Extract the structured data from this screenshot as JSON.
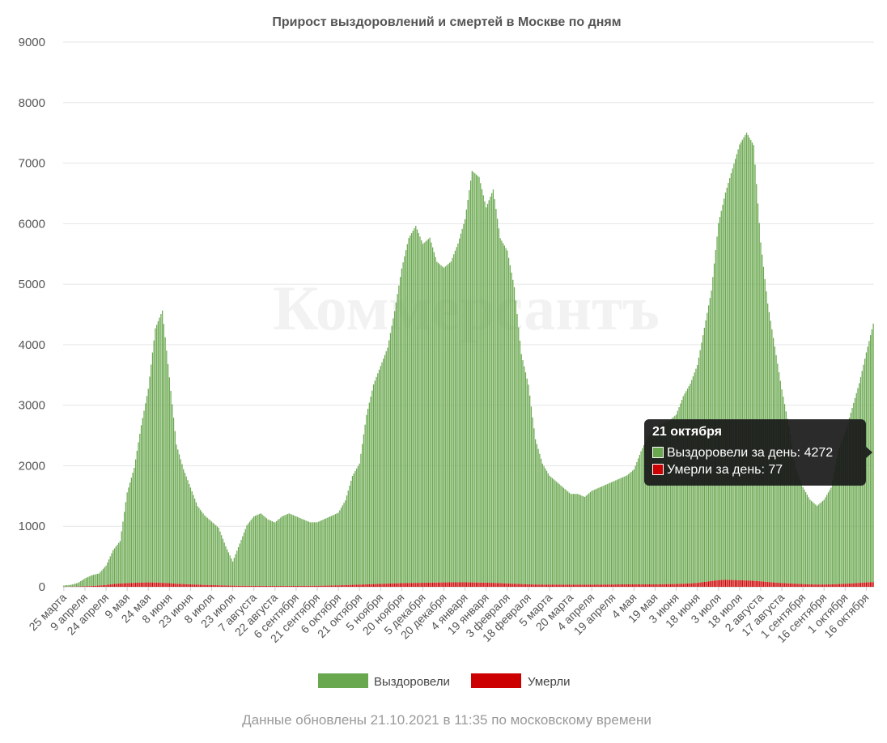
{
  "watermark": "Коммерсантъ",
  "footer": "Данные обновлены 21.10.2021 в 11:35 по московскому времени",
  "tooltip": {
    "title": "21 октября",
    "recovered_label": "Выздоровели за день: 4272",
    "deaths_label": "Умерли за день: 77"
  },
  "colors": {
    "recovered": "#6aa84f",
    "deaths": "#cc0000",
    "grid": "#e6e6e6"
  },
  "chart_data": {
    "type": "bar",
    "stacked": true,
    "title": "Прирост выздоровлений и смертей в Москве по дням",
    "ylim": [
      0,
      9000
    ],
    "yticks": [
      0,
      1000,
      2000,
      3000,
      4000,
      5000,
      6000,
      7000,
      8000,
      9000
    ],
    "grid": true,
    "legend_position": "bottom",
    "x_start": "2020-03-25",
    "x_end": "2021-10-21",
    "x_tick_labels": [
      "25 марта",
      "9 апреля",
      "24 апреля",
      "9 мая",
      "24 мая",
      "8 июня",
      "23 июня",
      "8 июля",
      "23 июля",
      "7 августа",
      "22 августа",
      "6 сентября",
      "21 сентября",
      "6 октября",
      "21 октября",
      "5 ноября",
      "20 ноября",
      "5 декабря",
      "20 декабря",
      "4 января",
      "19 января",
      "3 февраля",
      "18 февраля",
      "5 марта",
      "20 марта",
      "4 апреля",
      "19 апреля",
      "4 мая",
      "19 мая",
      "3 июня",
      "18 июня",
      "3 июля",
      "18 июля",
      "2 августа",
      "17 августа",
      "1 сентября",
      "16 сентября",
      "1 октября",
      "16 октября"
    ],
    "series": [
      {
        "name": "Выздоровели",
        "color": "#6aa84f",
        "description": "daily recovered, approximate values every 5 days aligned to tick dates",
        "x": [
          "2020-03-25",
          "2020-03-30",
          "2020-04-04",
          "2020-04-09",
          "2020-04-14",
          "2020-04-19",
          "2020-04-24",
          "2020-04-29",
          "2020-05-04",
          "2020-05-09",
          "2020-05-14",
          "2020-05-19",
          "2020-05-24",
          "2020-05-29",
          "2020-06-03",
          "2020-06-08",
          "2020-06-13",
          "2020-06-18",
          "2020-06-23",
          "2020-06-28",
          "2020-07-03",
          "2020-07-08",
          "2020-07-13",
          "2020-07-18",
          "2020-07-23",
          "2020-07-28",
          "2020-08-02",
          "2020-08-07",
          "2020-08-12",
          "2020-08-17",
          "2020-08-22",
          "2020-08-27",
          "2020-09-01",
          "2020-09-06",
          "2020-09-11",
          "2020-09-16",
          "2020-09-21",
          "2020-09-26",
          "2020-10-01",
          "2020-10-06",
          "2020-10-11",
          "2020-10-16",
          "2020-10-21",
          "2020-10-26",
          "2020-10-31",
          "2020-11-05",
          "2020-11-10",
          "2020-11-15",
          "2020-11-20",
          "2020-11-25",
          "2020-11-30",
          "2020-12-05",
          "2020-12-10",
          "2020-12-15",
          "2020-12-20",
          "2020-12-25",
          "2020-12-30",
          "2021-01-04",
          "2021-01-09",
          "2021-01-14",
          "2021-01-19",
          "2021-01-24",
          "2021-01-29",
          "2021-02-03",
          "2021-02-08",
          "2021-02-13",
          "2021-02-18",
          "2021-02-23",
          "2021-02-28",
          "2021-03-05",
          "2021-03-10",
          "2021-03-15",
          "2021-03-20",
          "2021-03-25",
          "2021-03-30",
          "2021-04-04",
          "2021-04-09",
          "2021-04-14",
          "2021-04-19",
          "2021-04-24",
          "2021-04-29",
          "2021-05-04",
          "2021-05-09",
          "2021-05-14",
          "2021-05-19",
          "2021-05-24",
          "2021-05-29",
          "2021-06-03",
          "2021-06-08",
          "2021-06-13",
          "2021-06-18",
          "2021-06-23",
          "2021-06-28",
          "2021-07-03",
          "2021-07-08",
          "2021-07-13",
          "2021-07-18",
          "2021-07-23",
          "2021-07-28",
          "2021-08-02",
          "2021-08-07",
          "2021-08-12",
          "2021-08-17",
          "2021-08-22",
          "2021-08-27",
          "2021-09-01",
          "2021-09-06",
          "2021-09-11",
          "2021-09-16",
          "2021-09-21",
          "2021-09-26",
          "2021-10-01",
          "2021-10-06",
          "2021-10-11",
          "2021-10-16",
          "2021-10-21"
        ],
        "values": [
          20,
          30,
          60,
          130,
          180,
          200,
          320,
          560,
          700,
          1500,
          1900,
          2600,
          3200,
          4200,
          4500,
          3400,
          2300,
          1900,
          1600,
          1300,
          1150,
          1050,
          950,
          650,
          400,
          700,
          1000,
          1150,
          1200,
          1100,
          1050,
          1150,
          1200,
          1150,
          1100,
          1050,
          1050,
          1100,
          1150,
          1200,
          1400,
          1800,
          2000,
          2800,
          3300,
          3600,
          3900,
          4500,
          5200,
          5700,
          5900,
          5600,
          5700,
          5300,
          5200,
          5300,
          5600,
          6000,
          6800,
          6700,
          6200,
          6500,
          5700,
          5500,
          4900,
          3800,
          3300,
          2400,
          2000,
          1800,
          1700,
          1600,
          1500,
          1500,
          1450,
          1550,
          1600,
          1650,
          1700,
          1750,
          1800,
          1900,
          2200,
          2450,
          2600,
          2650,
          2700,
          2800,
          3100,
          3300,
          3600,
          4200,
          4800,
          5900,
          6400,
          6800,
          7200,
          7400,
          7200,
          5600,
          4600,
          3900,
          3200,
          2600,
          1900,
          1600,
          1400,
          1300,
          1400,
          1600,
          2200,
          2500,
          2900,
          3300,
          3800,
          4272
        ]
      },
      {
        "name": "Умерли",
        "color": "#cc0000",
        "description": "daily deaths, approximate values every 5 days aligned to tick dates",
        "x": [
          "2020-03-25",
          "2020-03-30",
          "2020-04-04",
          "2020-04-09",
          "2020-04-14",
          "2020-04-19",
          "2020-04-24",
          "2020-04-29",
          "2020-05-04",
          "2020-05-09",
          "2020-05-14",
          "2020-05-19",
          "2020-05-24",
          "2020-05-29",
          "2020-06-03",
          "2020-06-08",
          "2020-06-13",
          "2020-06-18",
          "2020-06-23",
          "2020-06-28",
          "2020-07-03",
          "2020-07-08",
          "2020-07-13",
          "2020-07-18",
          "2020-07-23",
          "2020-07-28",
          "2020-08-02",
          "2020-08-07",
          "2020-08-12",
          "2020-08-17",
          "2020-08-22",
          "2020-08-27",
          "2020-09-01",
          "2020-09-06",
          "2020-09-11",
          "2020-09-16",
          "2020-09-21",
          "2020-09-26",
          "2020-10-01",
          "2020-10-06",
          "2020-10-11",
          "2020-10-16",
          "2020-10-21",
          "2020-10-26",
          "2020-10-31",
          "2020-11-05",
          "2020-11-10",
          "2020-11-15",
          "2020-11-20",
          "2020-11-25",
          "2020-11-30",
          "2020-12-05",
          "2020-12-10",
          "2020-12-15",
          "2020-12-20",
          "2020-12-25",
          "2020-12-30",
          "2021-01-04",
          "2021-01-09",
          "2021-01-14",
          "2021-01-19",
          "2021-01-24",
          "2021-01-29",
          "2021-02-03",
          "2021-02-08",
          "2021-02-13",
          "2021-02-18",
          "2021-02-23",
          "2021-02-28",
          "2021-03-05",
          "2021-03-10",
          "2021-03-15",
          "2021-03-20",
          "2021-03-25",
          "2021-03-30",
          "2021-04-04",
          "2021-04-09",
          "2021-04-14",
          "2021-04-19",
          "2021-04-24",
          "2021-04-29",
          "2021-05-04",
          "2021-05-09",
          "2021-05-14",
          "2021-05-19",
          "2021-05-24",
          "2021-05-29",
          "2021-06-03",
          "2021-06-08",
          "2021-06-13",
          "2021-06-18",
          "2021-06-23",
          "2021-06-28",
          "2021-07-03",
          "2021-07-08",
          "2021-07-13",
          "2021-07-18",
          "2021-07-23",
          "2021-07-28",
          "2021-08-02",
          "2021-08-07",
          "2021-08-12",
          "2021-08-17",
          "2021-08-22",
          "2021-08-27",
          "2021-09-01",
          "2021-09-06",
          "2021-09-11",
          "2021-09-16",
          "2021-09-21",
          "2021-09-26",
          "2021-10-01",
          "2021-10-06",
          "2021-10-11",
          "2021-10-16",
          "2021-10-21"
        ],
        "values": [
          1,
          2,
          4,
          8,
          12,
          20,
          30,
          45,
          55,
          60,
          65,
          70,
          72,
          70,
          65,
          60,
          50,
          45,
          40,
          35,
          30,
          28,
          25,
          20,
          18,
          15,
          15,
          14,
          14,
          13,
          13,
          13,
          13,
          14,
          14,
          15,
          16,
          18,
          20,
          24,
          28,
          32,
          36,
          40,
          44,
          48,
          52,
          56,
          60,
          62,
          64,
          66,
          68,
          70,
          72,
          73,
          74,
          74,
          72,
          70,
          68,
          65,
          60,
          55,
          50,
          45,
          40,
          38,
          36,
          36,
          36,
          35,
          35,
          35,
          35,
          35,
          36,
          37,
          38,
          40,
          40,
          40,
          40,
          40,
          40,
          42,
          44,
          46,
          50,
          56,
          64,
          80,
          95,
          110,
          115,
          112,
          108,
          104,
          98,
          90,
          80,
          70,
          62,
          56,
          50,
          45,
          40,
          38,
          38,
          40,
          45,
          50,
          56,
          64,
          72,
          77
        ]
      }
    ]
  }
}
